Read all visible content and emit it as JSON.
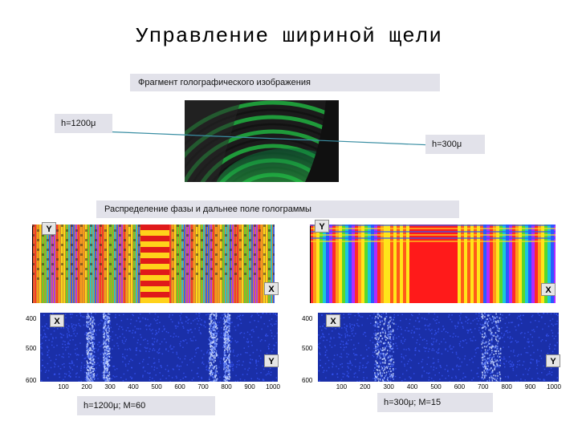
{
  "title": "Управление шириной щели",
  "caption_fragment": "Фрагмент голографического изображения",
  "label_h1200": "h=1200μ",
  "label_h300": "h=300μ",
  "caption_phase": "Распределение фазы и дальнее поле голограммы",
  "axis_labels": {
    "y": "Y",
    "x": "X"
  },
  "far_field": {
    "y_ticks": [
      "400",
      "500",
      "600"
    ],
    "x_ticks": [
      "100",
      "200",
      "300",
      "400",
      "500",
      "600",
      "700",
      "800",
      "900",
      "1000"
    ]
  },
  "bottom_left_label": "h=1200μ; M=60",
  "bottom_right_label": "h=300μ; M=15",
  "colors": {
    "caption_bg": "#e2e2ea",
    "far_field_bg": "#1a2fa8",
    "hologram_green": "#2bd64a"
  }
}
